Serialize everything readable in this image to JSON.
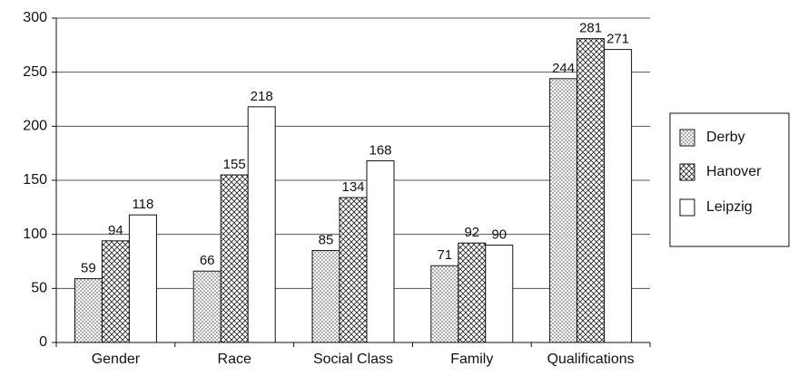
{
  "chart_data": {
    "type": "bar",
    "categories": [
      "Gender",
      "Race",
      "Social Class",
      "Family",
      "Qualifications"
    ],
    "series": [
      {
        "name": "Derby",
        "color": "#ffffff",
        "pattern": "dots",
        "values": [
          59,
          66,
          85,
          71,
          244
        ]
      },
      {
        "name": "Hanover",
        "color": "#ffffff",
        "pattern": "crosshatch",
        "values": [
          94,
          155,
          134,
          92,
          281
        ]
      },
      {
        "name": "Leipzig",
        "color": "#ffffff",
        "pattern": "none",
        "values": [
          118,
          218,
          168,
          90,
          271
        ]
      }
    ],
    "ylim": [
      0,
      300
    ],
    "yticks": [
      0,
      50,
      100,
      150,
      200,
      250,
      300
    ],
    "grid": true,
    "legend": "right"
  }
}
